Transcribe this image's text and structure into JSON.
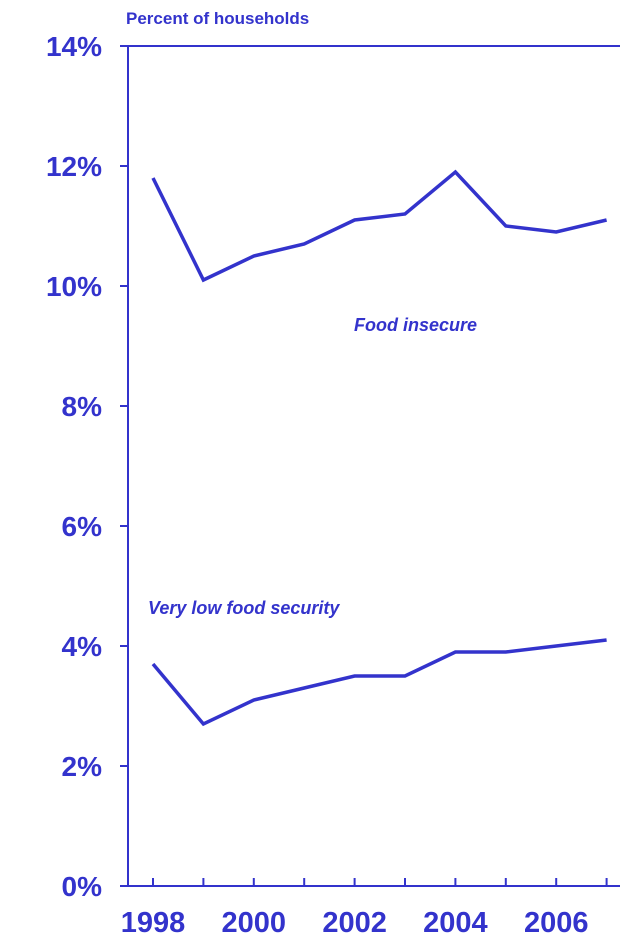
{
  "chart_data": {
    "type": "line",
    "title": "",
    "ylabel": "Percent of households",
    "xlabel": "",
    "ylim": [
      0,
      14
    ],
    "yticks": [
      0,
      2,
      4,
      6,
      8,
      10,
      12,
      14
    ],
    "ytick_labels": [
      "0%",
      "2%",
      "4%",
      "6%",
      "8%",
      "10%",
      "12%",
      "14%"
    ],
    "x": [
      1998,
      1999,
      2000,
      2001,
      2002,
      2003,
      2004,
      2005,
      2006,
      2007
    ],
    "xtick_labels": [
      "1998",
      "2000",
      "2002",
      "2004",
      "2006"
    ],
    "series": [
      {
        "name": "Food insecure",
        "values": [
          11.8,
          10.1,
          10.5,
          10.7,
          11.1,
          11.2,
          11.9,
          11.0,
          10.9,
          11.1
        ]
      },
      {
        "name": "Very low food security",
        "values": [
          3.7,
          2.7,
          3.1,
          3.3,
          3.5,
          3.5,
          3.9,
          3.9,
          4.0,
          4.1
        ]
      }
    ],
    "annotations": [
      "Food insecure",
      "Very low food security"
    ],
    "colors": {
      "primary": "#3333cc"
    },
    "grid": false
  }
}
